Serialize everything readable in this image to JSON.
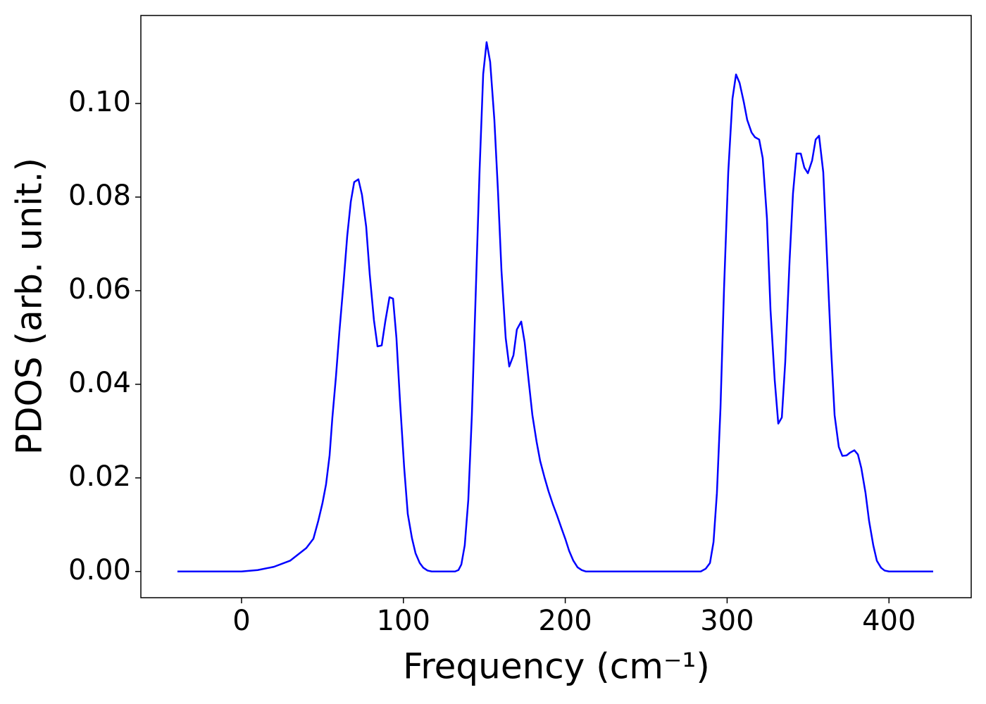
{
  "chart_data": {
    "type": "line",
    "xlabel": "Frequency (cm⁻¹)",
    "ylabel": "PDOS (arb. unit.)",
    "xlim": [
      -62.2,
      450.8
    ],
    "ylim": [
      -0.0056,
      0.1188
    ],
    "xticks": [
      0,
      100,
      200,
      300,
      400
    ],
    "yticks": [
      {
        "value": 0,
        "label": "0.00"
      },
      {
        "value": 0.02,
        "label": "0.02"
      },
      {
        "value": 0.04,
        "label": "0.04"
      },
      {
        "value": 0.06,
        "label": "0.06"
      },
      {
        "value": 0.08,
        "label": "0.08"
      },
      {
        "value": 0.1,
        "label": "0.10"
      }
    ],
    "series": [
      {
        "color": "#0000ff",
        "x": [
          -39.6,
          0,
          10,
          20,
          30,
          40,
          44.4,
          47.4,
          50,
          52.2,
          54.4,
          56.1,
          58.3,
          60.5,
          63.1,
          65.3,
          67.5,
          69.6,
          72.2,
          74.4,
          77,
          79.2,
          81.8,
          84,
          86.6,
          88.8,
          91.4,
          93.6,
          95.7,
          97.9,
          100.5,
          102.7,
          105.3,
          107.5,
          110.1,
          112.3,
          114.9,
          117.5,
          131.9,
          134,
          135.8,
          137.9,
          140.1,
          142.3,
          144.5,
          147.1,
          149.3,
          151.4,
          153.6,
          156.2,
          158.4,
          160.6,
          163.2,
          165.4,
          168,
          170.1,
          172.8,
          174.9,
          177.1,
          179.7,
          182.3,
          184.5,
          187.1,
          189.7,
          192.3,
          195,
          197.6,
          200.2,
          202.4,
          205,
          207.6,
          210.2,
          212.8,
          283.7,
          286.8,
          289.4,
          291.6,
          293.7,
          295.9,
          298.1,
          300.7,
          303.3,
          305.5,
          307.7,
          310.3,
          312.4,
          315.1,
          317.2,
          319.8,
          322,
          324.6,
          326.8,
          329.4,
          331.6,
          333.8,
          335.9,
          338.6,
          340.7,
          342.9,
          345.5,
          347.7,
          349.9,
          352.5,
          354.7,
          356.8,
          359.4,
          361.6,
          364.2,
          366.4,
          369,
          371.2,
          373.8,
          376,
          378.6,
          380.8,
          382.9,
          385.5,
          387.7,
          390.3,
          392.5,
          395.1,
          397.3,
          400,
          427.3
        ],
        "values": [
          0,
          0,
          0.0003,
          0.001,
          0.0023,
          0.005,
          0.007,
          0.0108,
          0.0146,
          0.0186,
          0.0248,
          0.0328,
          0.0415,
          0.0514,
          0.062,
          0.0717,
          0.079,
          0.0832,
          0.0838,
          0.0805,
          0.0737,
          0.0635,
          0.0537,
          0.0481,
          0.0483,
          0.0534,
          0.0586,
          0.0583,
          0.0499,
          0.0364,
          0.0221,
          0.0123,
          0.0071,
          0.0039,
          0.0018,
          0.0008,
          0.0002,
          0,
          0,
          0.0003,
          0.0015,
          0.0056,
          0.0153,
          0.0334,
          0.0574,
          0.086,
          0.1063,
          0.1131,
          0.1089,
          0.0965,
          0.0815,
          0.0642,
          0.0499,
          0.0438,
          0.0462,
          0.0517,
          0.0534,
          0.049,
          0.0417,
          0.0334,
          0.0277,
          0.0236,
          0.0202,
          0.0171,
          0.0144,
          0.0119,
          0.0093,
          0.0068,
          0.0044,
          0.0023,
          0.0009,
          0.0003,
          0,
          0,
          0.0006,
          0.0018,
          0.0063,
          0.0168,
          0.0349,
          0.0605,
          0.0853,
          0.101,
          0.1062,
          0.1044,
          0.1003,
          0.0965,
          0.0938,
          0.0928,
          0.0923,
          0.0883,
          0.0755,
          0.0559,
          0.0409,
          0.0316,
          0.0329,
          0.0447,
          0.0665,
          0.0808,
          0.0893,
          0.0893,
          0.0863,
          0.0851,
          0.0878,
          0.0923,
          0.0931,
          0.0853,
          0.068,
          0.0477,
          0.0334,
          0.0266,
          0.0247,
          0.0248,
          0.0254,
          0.0259,
          0.025,
          0.0221,
          0.0168,
          0.0108,
          0.0056,
          0.0023,
          0.0008,
          0.0002,
          0,
          0
        ]
      }
    ]
  }
}
